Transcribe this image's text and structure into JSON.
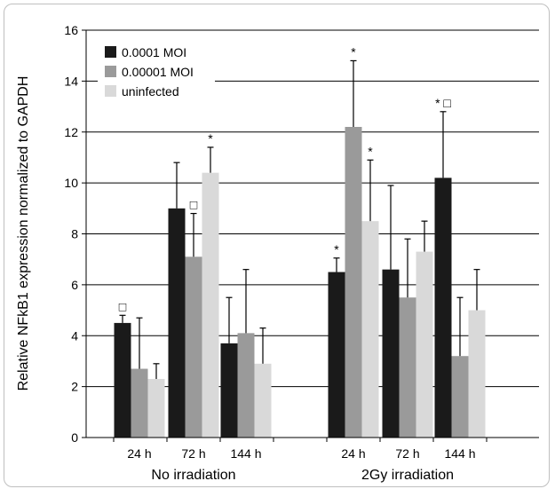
{
  "chart_data": {
    "type": "bar",
    "ylabel": "Relative NFkB1 expression normalized to GAPDH",
    "xlabel": "",
    "ylim": [
      0,
      16
    ],
    "yticks": [
      "0",
      "2",
      "4",
      "6",
      "8",
      "10",
      "12",
      "14",
      "16"
    ],
    "grid": true,
    "legend_position": "top-left",
    "groups": [
      {
        "label": "No irradiation",
        "categories": [
          "24 h",
          "72 h",
          "144 h"
        ]
      },
      {
        "label": "2Gy irradiation",
        "categories": [
          "24 h",
          "72 h",
          "144 h"
        ]
      }
    ],
    "categories": [
      "24 h",
      "72 h",
      "144 h",
      "24 h",
      "72 h",
      "144 h"
    ],
    "series": [
      {
        "name": "0.0001 MOI",
        "color": "#1a1a1a",
        "values": [
          4.5,
          9.0,
          3.7,
          6.5,
          6.6,
          10.2
        ],
        "errors": [
          0.3,
          1.8,
          1.8,
          0.55,
          3.3,
          2.6
        ],
        "markers": [
          "□",
          "",
          "",
          "*",
          "",
          "* □"
        ]
      },
      {
        "name": "0.00001 MOI",
        "color": "#9a9a9a",
        "values": [
          2.7,
          7.1,
          4.1,
          12.2,
          5.5,
          3.2
        ],
        "errors": [
          2.0,
          1.7,
          2.5,
          2.6,
          2.3,
          2.3
        ],
        "markers": [
          "",
          "□",
          "",
          "*",
          "",
          ""
        ]
      },
      {
        "name": "uninfected",
        "color": "#d9d9d9",
        "values": [
          2.3,
          10.4,
          2.9,
          8.5,
          7.3,
          5.0
        ],
        "errors": [
          0.6,
          1.0,
          1.4,
          2.4,
          1.2,
          1.6
        ],
        "markers": [
          "",
          "*",
          "",
          "*",
          "",
          ""
        ]
      }
    ]
  }
}
